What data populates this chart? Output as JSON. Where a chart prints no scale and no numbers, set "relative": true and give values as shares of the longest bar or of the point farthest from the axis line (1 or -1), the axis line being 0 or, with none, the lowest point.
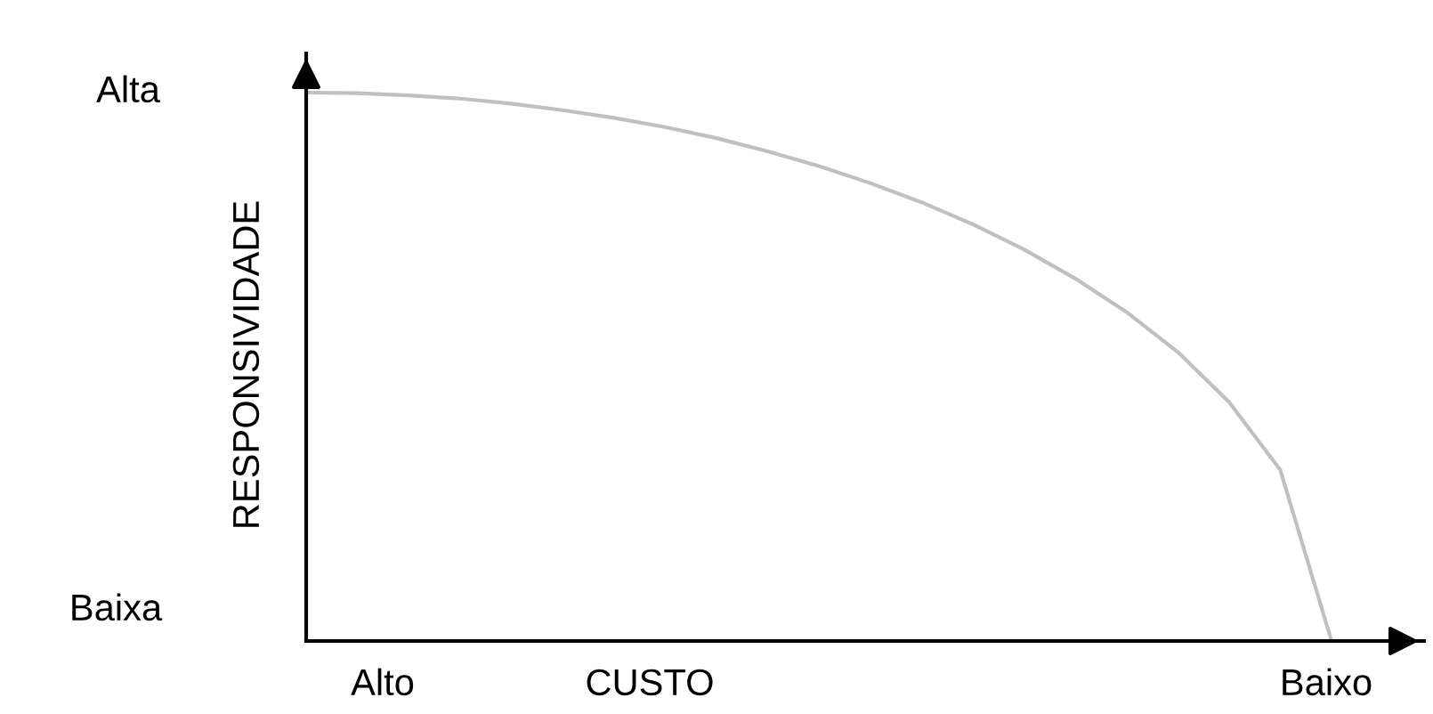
{
  "chart_data": {
    "type": "line",
    "relative": true,
    "xlabel": "CUSTO",
    "ylabel": "RESPONSIVIDADE",
    "annotations": [
      "Alta",
      "Baixa",
      "Alto",
      "Baixo"
    ],
    "categories": [
      null,
      null,
      null,
      null,
      null,
      null,
      null,
      null,
      null,
      null,
      null,
      null,
      null,
      null,
      null,
      null,
      null,
      null,
      null,
      null,
      null
    ],
    "color": "#c0c0c0",
    "values": [
      1,
      0.999,
      0.995,
      0.989,
      0.98,
      0.968,
      0.954,
      0.937,
      0.917,
      0.893,
      0.866,
      0.835,
      0.8,
      0.76,
      0.714,
      0.661,
      0.6,
      0.527,
      0.436,
      0.312,
      0
    ]
  }
}
